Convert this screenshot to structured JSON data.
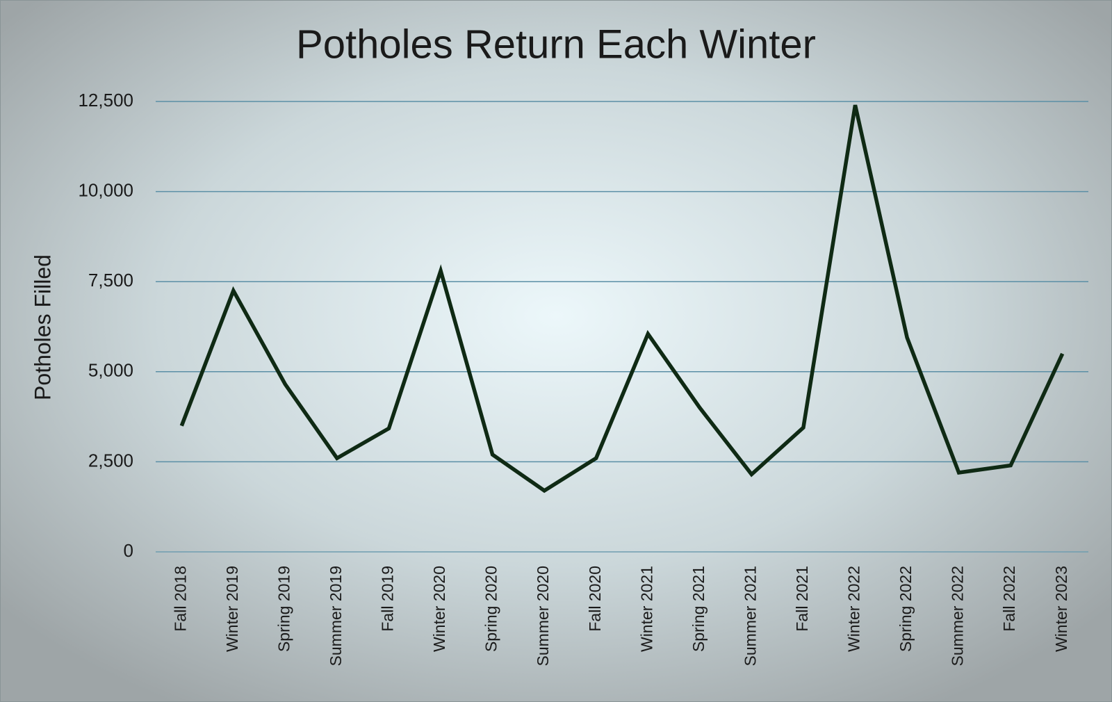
{
  "chart_data": {
    "type": "line",
    "title": "Potholes Return Each Winter",
    "y_label": "Potholes Filled",
    "categories": [
      "Fall 2018",
      "Winter 2019",
      "Spring 2019",
      "Summer 2019",
      "Fall 2019",
      "Winter 2020",
      "Spring 2020",
      "Summer 2020",
      "Fall 2020",
      "Winter 2021",
      "Spring 2021",
      "Summer 2021",
      "Fall 2021",
      "Winter 2022",
      "Spring 2022",
      "Summer 2022",
      "Fall 2022",
      "Winter 2023"
    ],
    "values": [
      3500,
      7250,
      4650,
      2600,
      3425,
      7800,
      2700,
      1700,
      2600,
      6050,
      4000,
      2150,
      3450,
      12400,
      5950,
      2200,
      2400,
      5500
    ],
    "color": "#0f2a14",
    "ylim": [
      0,
      12500
    ],
    "yticks": [
      0,
      {
        "value": 2500,
        "label": "2,500"
      },
      {
        "value": 5000,
        "label": "5,000"
      },
      {
        "value": 7500,
        "label": "7,500"
      },
      {
        "value": 10000,
        "label": "10,000"
      },
      {
        "value": 12500,
        "label": "12,500"
      }
    ],
    "grid": true
  }
}
